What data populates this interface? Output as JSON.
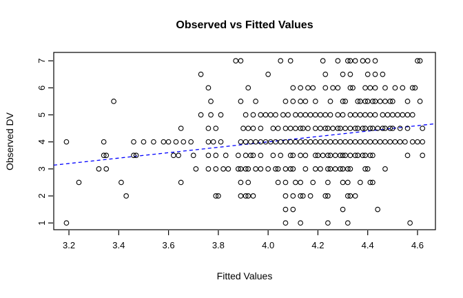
{
  "chart_data": {
    "type": "scatter",
    "title": "Observed vs Fitted Values",
    "xlabel": "Fitted Values",
    "ylabel": "Observed DV",
    "x_ticks": [
      3.2,
      3.4,
      3.6,
      3.8,
      4.0,
      4.2,
      4.4,
      4.6
    ],
    "y_ticks": [
      1,
      2,
      3,
      4,
      5,
      6,
      7
    ],
    "xlim": [
      3.139,
      4.672
    ],
    "ylim": [
      0.75,
      7.31
    ],
    "grid": false,
    "legend": "none",
    "marker": {
      "shape": "open-circle",
      "color": "#000000"
    },
    "reference_line": {
      "name": "identity-line",
      "slope": 1,
      "intercept": 0,
      "color": "#0000ff",
      "style": "dashed"
    },
    "rows": [
      {
        "y": 7.0,
        "x": [
          3.87,
          3.89,
          4.05,
          4.09,
          4.22,
          4.28,
          4.32,
          4.33,
          4.35,
          4.38,
          4.4,
          4.43,
          4.6,
          4.61
        ]
      },
      {
        "y": 6.5,
        "x": [
          3.73,
          4.0,
          4.23,
          4.3,
          4.33,
          4.4,
          4.43,
          4.46
        ]
      },
      {
        "y": 6.0,
        "x": [
          3.76,
          3.92,
          4.1,
          4.13,
          4.16,
          4.18,
          4.23,
          4.26,
          4.28,
          4.33,
          4.34,
          4.39,
          4.41,
          4.43,
          4.47,
          4.51,
          4.54,
          4.58,
          4.59
        ]
      },
      {
        "y": 5.5,
        "x": [
          3.38,
          3.77,
          3.89,
          3.95,
          4.07,
          4.1,
          4.13,
          4.15,
          4.19,
          4.25,
          4.3,
          4.31,
          4.36,
          4.37,
          4.39,
          4.4,
          4.42,
          4.43,
          4.45,
          4.47,
          4.49,
          4.5,
          4.56,
          4.61
        ]
      },
      {
        "y": 5.0,
        "x": [
          3.73,
          3.77,
          3.81,
          3.91,
          3.94,
          3.97,
          3.99,
          4.01,
          4.03,
          4.06,
          4.08,
          4.11,
          4.13,
          4.15,
          4.17,
          4.19,
          4.21,
          4.23,
          4.25,
          4.28,
          4.3,
          4.33,
          4.35,
          4.37,
          4.39,
          4.41,
          4.43,
          4.46,
          4.48,
          4.5,
          4.52,
          4.54,
          4.56,
          4.58
        ]
      },
      {
        "y": 4.5,
        "x": [
          3.65,
          3.76,
          3.79,
          3.9,
          3.92,
          3.94,
          3.97,
          4.02,
          4.04,
          4.07,
          4.09,
          4.11,
          4.13,
          4.14,
          4.16,
          4.19,
          4.21,
          4.23,
          4.24,
          4.26,
          4.28,
          4.29,
          4.31,
          4.33,
          4.35,
          4.36,
          4.38,
          4.39,
          4.41,
          4.42,
          4.44,
          4.46,
          4.47,
          4.49,
          4.5,
          4.53,
          4.56,
          4.62
        ]
      },
      {
        "y": 4.0,
        "x": [
          3.19,
          3.34,
          3.46,
          3.5,
          3.54,
          3.58,
          3.6,
          3.63,
          3.66,
          3.69,
          3.76,
          3.78,
          3.81,
          3.89,
          3.91,
          3.93,
          3.95,
          3.97,
          3.99,
          4.01,
          4.03,
          4.05,
          4.07,
          4.09,
          4.11,
          4.13,
          4.15,
          4.17,
          4.19,
          4.21,
          4.23,
          4.25,
          4.27,
          4.29,
          4.31,
          4.33,
          4.35,
          4.37,
          4.39,
          4.41,
          4.43,
          4.45,
          4.47,
          4.49,
          4.51,
          4.53,
          4.55,
          4.58,
          4.6,
          4.62
        ]
      },
      {
        "y": 3.5,
        "x": [
          3.34,
          3.35,
          3.46,
          3.47,
          3.62,
          3.64,
          3.7,
          3.76,
          3.79,
          3.83,
          3.88,
          3.91,
          3.93,
          3.94,
          3.97,
          4.02,
          4.05,
          4.09,
          4.1,
          4.13,
          4.15,
          4.19,
          4.2,
          4.22,
          4.24,
          4.25,
          4.27,
          4.29,
          4.3,
          4.31,
          4.33,
          4.35,
          4.36,
          4.38,
          4.39,
          4.41,
          4.42,
          4.56,
          4.62
        ]
      },
      {
        "y": 3.0,
        "x": [
          3.32,
          3.35,
          3.71,
          3.76,
          3.79,
          3.82,
          3.84,
          3.88,
          3.89,
          3.91,
          3.92,
          3.95,
          3.97,
          4.0,
          4.03,
          4.04,
          4.07,
          4.09,
          4.1,
          4.15,
          4.19,
          4.21,
          4.24,
          4.25,
          4.27,
          4.29,
          4.3,
          4.32,
          4.33,
          4.39,
          4.4,
          4.47
        ]
      },
      {
        "y": 2.5,
        "x": [
          3.24,
          3.41,
          3.65,
          3.89,
          3.92,
          4.04,
          4.07,
          4.11,
          4.13,
          4.18,
          4.24,
          4.3,
          4.32,
          4.37,
          4.41,
          4.42
        ]
      },
      {
        "y": 2.0,
        "x": [
          3.43,
          3.79,
          3.8,
          3.89,
          3.91,
          3.92,
          3.94,
          4.07,
          4.1,
          4.13,
          4.14,
          4.17,
          4.23,
          4.24,
          4.32,
          4.33,
          4.35
        ]
      },
      {
        "y": 1.5,
        "x": [
          4.07,
          4.1,
          4.3,
          4.44
        ]
      },
      {
        "y": 1.0,
        "x": [
          3.19,
          4.07,
          4.13,
          4.24,
          4.32,
          4.57
        ]
      }
    ]
  }
}
